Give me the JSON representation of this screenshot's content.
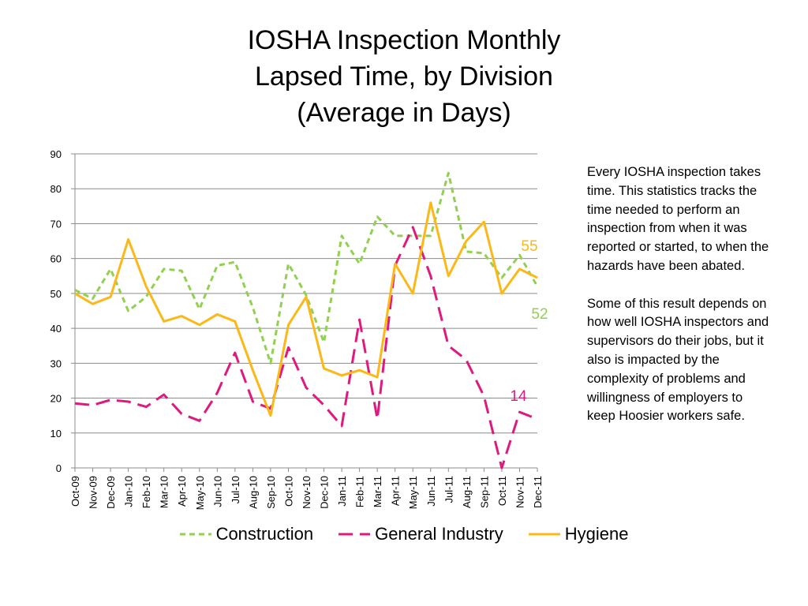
{
  "title_lines": [
    "IOSHA Inspection Monthly",
    "Lapsed Time, by Division",
    "(Average in Days)"
  ],
  "note_paragraphs": [
    "Every IOSHA inspection takes time.  This statistics tracks the time needed to perform an inspection from when it was reported or started, to when the hazards have been abated.",
    "Some of this result depends on how well IOSHA inspectors and supervisors do their jobs, but it also is impacted by the complexity of problems and willingness of employers to keep Hoosier workers safe."
  ],
  "chart_data": {
    "type": "line",
    "title": "IOSHA Inspection Monthly Lapsed Time, by Division (Average in Days)",
    "categories": [
      "Oct-09",
      "Nov-09",
      "Dec-09",
      "Jan-10",
      "Feb-10",
      "Mar-10",
      "Apr-10",
      "May-10",
      "Jun-10",
      "Jul-10",
      "Aug-10",
      "Sep-10",
      "Oct-10",
      "Nov-10",
      "Dec-10",
      "Jan-11",
      "Feb-11",
      "Mar-11",
      "Apr-11",
      "May-11",
      "Jun-11",
      "Jul-11",
      "Aug-11",
      "Sep-11",
      "Oct-11",
      "Nov-11",
      "Dec-11"
    ],
    "ylim": [
      0,
      90
    ],
    "yticks": [
      0,
      10,
      20,
      30,
      40,
      50,
      60,
      70,
      80,
      90
    ],
    "grid": true,
    "legend_position": "bottom",
    "series": [
      {
        "name": "Construction",
        "color": "#92D050",
        "dash": "short-dash",
        "values": [
          51,
          48.5,
          57,
          45,
          49,
          57,
          56.5,
          45.5,
          58,
          59,
          46,
          30,
          58.5,
          49.5,
          36,
          66.5,
          58.5,
          72,
          66.5,
          66.5,
          66.5,
          84.5,
          62,
          61.5,
          54.5,
          61,
          52
        ],
        "end_label": "52"
      },
      {
        "name": "General Industry",
        "color": "#E0197E",
        "dash": "long-dash",
        "values": [
          18.5,
          18,
          19.5,
          19,
          17.5,
          21,
          15.5,
          13.5,
          21.5,
          33,
          19,
          17,
          34.5,
          23,
          18,
          12,
          42.5,
          14,
          58,
          69,
          55,
          35,
          31,
          20.5,
          0,
          16,
          14
        ],
        "end_label": "14"
      },
      {
        "name": "Hygiene",
        "color": "#FBB817",
        "dash": "solid",
        "values": [
          50,
          47,
          49,
          65.5,
          52,
          42,
          43.5,
          41,
          44,
          42,
          28,
          15,
          41,
          49,
          28.5,
          26.5,
          28,
          26,
          58.5,
          50,
          76,
          55,
          65,
          70.5,
          50,
          57,
          54.5
        ],
        "end_label": "55"
      }
    ]
  }
}
